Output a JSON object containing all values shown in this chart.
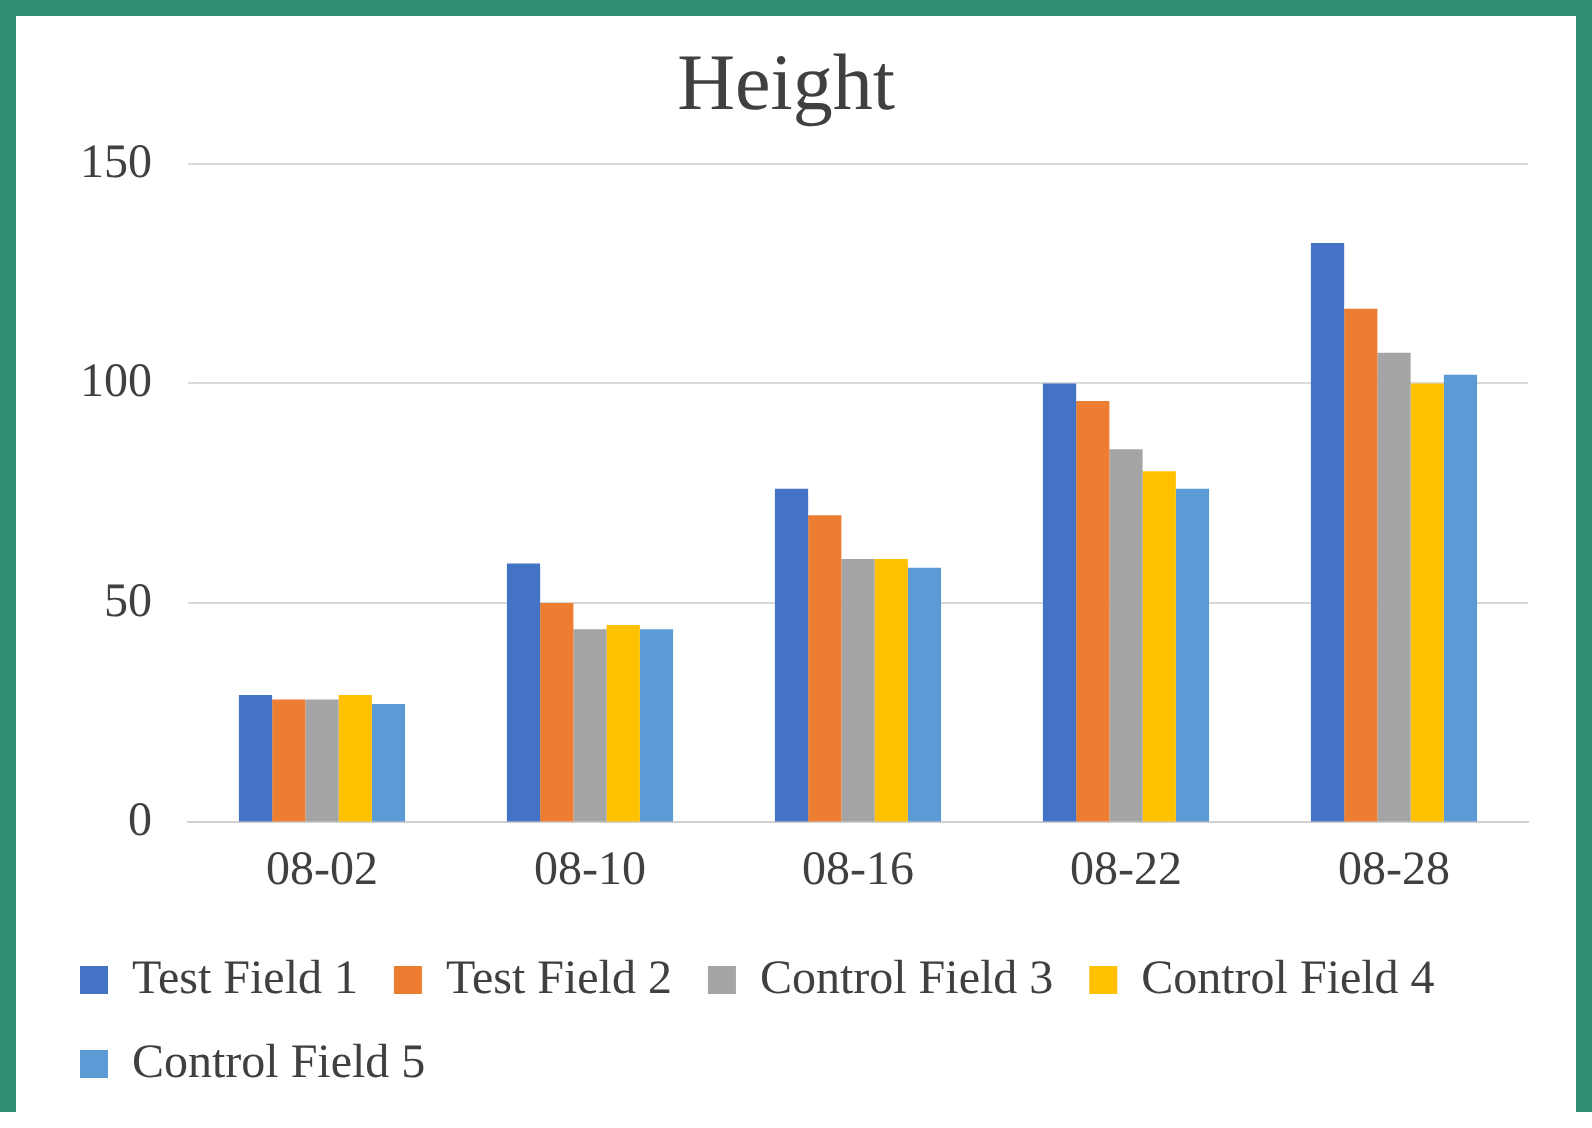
{
  "chart_data": {
    "type": "bar",
    "title": "Height",
    "categories": [
      "08-02",
      "08-10",
      "08-16",
      "08-22",
      "08-28"
    ],
    "series": [
      {
        "name": "Test Field 1",
        "color": "#4472c4",
        "values": [
          29,
          59,
          76,
          100,
          132
        ]
      },
      {
        "name": "Test Field 2",
        "color": "#ed7d31",
        "values": [
          28,
          50,
          70,
          96,
          117
        ]
      },
      {
        "name": "Control Field 3",
        "color": "#a5a5a5",
        "values": [
          28,
          44,
          60,
          85,
          107
        ]
      },
      {
        "name": "Control Field 4",
        "color": "#ffc000",
        "values": [
          29,
          45,
          60,
          80,
          100
        ]
      },
      {
        "name": "Control Field 5",
        "color": "#5b9bd5",
        "values": [
          27,
          44,
          58,
          76,
          102
        ]
      }
    ],
    "ylim": [
      0,
      150
    ],
    "yticks": [
      0,
      50,
      100,
      150
    ],
    "grid": "y",
    "legend": "bottom"
  }
}
